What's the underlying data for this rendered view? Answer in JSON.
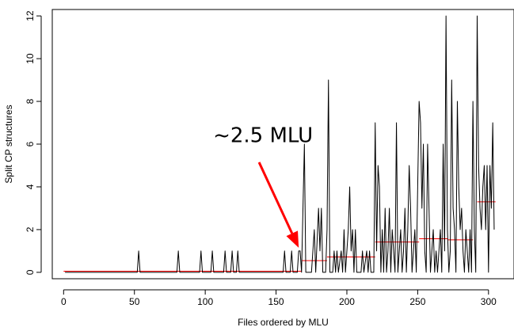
{
  "chart_data": {
    "type": "line",
    "xlabel": "Files ordered by MLU",
    "ylabel": "Split CP structures",
    "xlim": [
      -8,
      318
    ],
    "ylim": [
      -0.3,
      12.3
    ],
    "x_ticks": [
      0,
      50,
      100,
      150,
      200,
      250,
      300
    ],
    "y_ticks": [
      0,
      2,
      4,
      6,
      8,
      10,
      12
    ],
    "grid": false,
    "legend": "none",
    "colors": {
      "series_line": "#000000",
      "segment_means": "#ff0000",
      "arrow": "#ff0000",
      "axis": "#000000"
    },
    "series": [
      {
        "values": [
          [
            1,
            0
          ],
          [
            52,
            0
          ],
          [
            53,
            1
          ],
          [
            54,
            0
          ],
          [
            80,
            0
          ],
          [
            81,
            1
          ],
          [
            82,
            0
          ],
          [
            96,
            0
          ],
          [
            97,
            1
          ],
          [
            98,
            0
          ],
          [
            104,
            0
          ],
          [
            105,
            1
          ],
          [
            106,
            0
          ],
          [
            113,
            0
          ],
          [
            114,
            1
          ],
          [
            115,
            0
          ],
          [
            118,
            0
          ],
          [
            119,
            1
          ],
          [
            120,
            0
          ],
          [
            122,
            0
          ],
          [
            123,
            1
          ],
          [
            124,
            0
          ],
          [
            155,
            0
          ],
          [
            156,
            1
          ],
          [
            157,
            0
          ],
          [
            160,
            0
          ],
          [
            161,
            1
          ],
          [
            162,
            0
          ],
          [
            165,
            0
          ],
          [
            166,
            1
          ],
          [
            167,
            1
          ],
          [
            168,
            0
          ],
          [
            170,
            6
          ],
          [
            171,
            0
          ],
          [
            175,
            0
          ],
          [
            177,
            2
          ],
          [
            178,
            0
          ],
          [
            180,
            3
          ],
          [
            181,
            1
          ],
          [
            182,
            3
          ],
          [
            183,
            0
          ],
          [
            185,
            0
          ],
          [
            186,
            2
          ],
          [
            187,
            9
          ],
          [
            188,
            0
          ],
          [
            190,
            0
          ],
          [
            191,
            1
          ],
          [
            192,
            0
          ],
          [
            193,
            1
          ],
          [
            194,
            0
          ],
          [
            196,
            1
          ],
          [
            197,
            0
          ],
          [
            198,
            2
          ],
          [
            199,
            0
          ],
          [
            201,
            2
          ],
          [
            202,
            4
          ],
          [
            203,
            1
          ],
          [
            204,
            2
          ],
          [
            205,
            0
          ],
          [
            206,
            2
          ],
          [
            207,
            0
          ],
          [
            210,
            0
          ],
          [
            211,
            1
          ],
          [
            212,
            0
          ],
          [
            214,
            1
          ],
          [
            215,
            0
          ],
          [
            216,
            1
          ],
          [
            217,
            0
          ],
          [
            219,
            0
          ],
          [
            220,
            7
          ],
          [
            221,
            1
          ],
          [
            222,
            5
          ],
          [
            223,
            4
          ],
          [
            224,
            0
          ],
          [
            225,
            2
          ],
          [
            226,
            0
          ],
          [
            227,
            3
          ],
          [
            228,
            0
          ],
          [
            229,
            1
          ],
          [
            230,
            3
          ],
          [
            231,
            0
          ],
          [
            232,
            2
          ],
          [
            233,
            1
          ],
          [
            234,
            0
          ],
          [
            235,
            7
          ],
          [
            236,
            0
          ],
          [
            237,
            1
          ],
          [
            238,
            2
          ],
          [
            239,
            0
          ],
          [
            240,
            1
          ],
          [
            241,
            3
          ],
          [
            242,
            0
          ],
          [
            243,
            2
          ],
          [
            244,
            5
          ],
          [
            245,
            3
          ],
          [
            246,
            0
          ],
          [
            247,
            1
          ],
          [
            248,
            2
          ],
          [
            249,
            0
          ],
          [
            250,
            4
          ],
          [
            251,
            8
          ],
          [
            252,
            7
          ],
          [
            253,
            3
          ],
          [
            254,
            6
          ],
          [
            255,
            1
          ],
          [
            256,
            0
          ],
          [
            257,
            6
          ],
          [
            258,
            3
          ],
          [
            259,
            0
          ],
          [
            260,
            1
          ],
          [
            261,
            2
          ],
          [
            262,
            0
          ],
          [
            263,
            1
          ],
          [
            264,
            0
          ],
          [
            266,
            2
          ],
          [
            267,
            0
          ],
          [
            268,
            6
          ],
          [
            269,
            1
          ],
          [
            270,
            12
          ],
          [
            271,
            2
          ],
          [
            272,
            0
          ],
          [
            273,
            1
          ],
          [
            274,
            9
          ],
          [
            275,
            3
          ],
          [
            276,
            2
          ],
          [
            277,
            0
          ],
          [
            278,
            8
          ],
          [
            279,
            4
          ],
          [
            280,
            2
          ],
          [
            281,
            3
          ],
          [
            282,
            1
          ],
          [
            283,
            0
          ],
          [
            284,
            2
          ],
          [
            285,
            1
          ],
          [
            286,
            0
          ],
          [
            287,
            2
          ],
          [
            288,
            0
          ],
          [
            289,
            8
          ],
          [
            290,
            2
          ],
          [
            291,
            0
          ],
          [
            292,
            12
          ],
          [
            293,
            5
          ],
          [
            294,
            3
          ],
          [
            295,
            2
          ],
          [
            296,
            4
          ],
          [
            297,
            5
          ],
          [
            298,
            2
          ],
          [
            299,
            5
          ],
          [
            300,
            0
          ],
          [
            301,
            5
          ],
          [
            302,
            3
          ],
          [
            303,
            7
          ],
          [
            304,
            2
          ]
        ]
      }
    ],
    "segment_means": [
      {
        "x_start": 0,
        "x_end": 168,
        "y": 0.05
      },
      {
        "x_start": 168,
        "x_end": 186,
        "y": 0.55
      },
      {
        "x_start": 186,
        "x_end": 220,
        "y": 0.72
      },
      {
        "x_start": 220,
        "x_end": 251,
        "y": 1.42
      },
      {
        "x_start": 251,
        "x_end": 271,
        "y": 1.57
      },
      {
        "x_start": 271,
        "x_end": 289,
        "y": 1.52
      },
      {
        "x_start": 292,
        "x_end": 305,
        "y": 3.3
      }
    ],
    "annotations": [
      {
        "text": "~2.5 MLU",
        "arrow_from": [
          138,
          5.15
        ],
        "arrow_to": [
          166,
          1.15
        ]
      }
    ]
  }
}
